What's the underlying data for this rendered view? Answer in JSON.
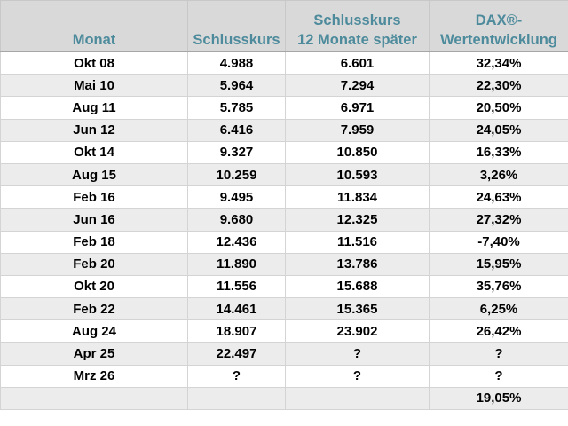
{
  "header": {
    "col1": "Monat",
    "col2": "Schlusskurs",
    "col3_line1": "Schlusskurs",
    "col3_line2": "12 Monate später",
    "col4_line1": "DAX®-",
    "col4_line2": "Wertentwicklung"
  },
  "rows": [
    {
      "monat": "Okt 08",
      "schlusskurs": "4.988",
      "schlusskurs_12m": "6.601",
      "entwicklung": "32,34%"
    },
    {
      "monat": "Mai 10",
      "schlusskurs": "5.964",
      "schlusskurs_12m": "7.294",
      "entwicklung": "22,30%"
    },
    {
      "monat": "Aug 11",
      "schlusskurs": "5.785",
      "schlusskurs_12m": "6.971",
      "entwicklung": "20,50%"
    },
    {
      "monat": "Jun 12",
      "schlusskurs": "6.416",
      "schlusskurs_12m": "7.959",
      "entwicklung": "24,05%"
    },
    {
      "monat": "Okt 14",
      "schlusskurs": "9.327",
      "schlusskurs_12m": "10.850",
      "entwicklung": "16,33%"
    },
    {
      "monat": "Aug 15",
      "schlusskurs": "10.259",
      "schlusskurs_12m": "10.593",
      "entwicklung": "3,26%"
    },
    {
      "monat": "Feb 16",
      "schlusskurs": "9.495",
      "schlusskurs_12m": "11.834",
      "entwicklung": "24,63%"
    },
    {
      "monat": "Jun 16",
      "schlusskurs": "9.680",
      "schlusskurs_12m": "12.325",
      "entwicklung": "27,32%"
    },
    {
      "monat": "Feb 18",
      "schlusskurs": "12.436",
      "schlusskurs_12m": "11.516",
      "entwicklung": "-7,40%"
    },
    {
      "monat": "Feb 20",
      "schlusskurs": "11.890",
      "schlusskurs_12m": "13.786",
      "entwicklung": "15,95%"
    },
    {
      "monat": "Okt 20",
      "schlusskurs": "11.556",
      "schlusskurs_12m": "15.688",
      "entwicklung": "35,76%"
    },
    {
      "monat": "Feb 22",
      "schlusskurs": "14.461",
      "schlusskurs_12m": "15.365",
      "entwicklung": "6,25%"
    },
    {
      "monat": "Aug 24",
      "schlusskurs": "18.907",
      "schlusskurs_12m": "23.902",
      "entwicklung": "26,42%"
    },
    {
      "monat": "Apr 25",
      "schlusskurs": "22.497",
      "schlusskurs_12m": "?",
      "entwicklung": "?"
    },
    {
      "monat": "Mrz 26",
      "schlusskurs": "?",
      "schlusskurs_12m": "?",
      "entwicklung": "?"
    }
  ],
  "summary": {
    "entwicklung": "19,05%"
  },
  "colors": {
    "header_bg": "#d9d9d9",
    "header_text": "#4d8b9c",
    "shaded_row": "#ececec"
  }
}
